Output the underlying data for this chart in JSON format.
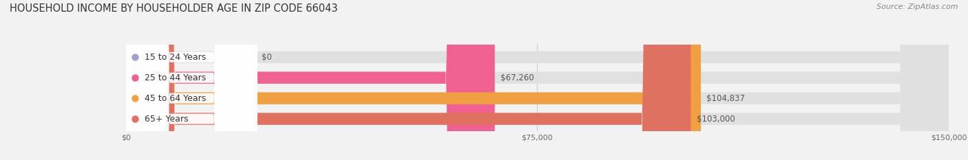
{
  "title": "HOUSEHOLD INCOME BY HOUSEHOLDER AGE IN ZIP CODE 66043",
  "source": "Source: ZipAtlas.com",
  "categories": [
    "15 to 24 Years",
    "25 to 44 Years",
    "45 to 64 Years",
    "65+ Years"
  ],
  "values": [
    0,
    67260,
    104837,
    103000
  ],
  "bar_colors": [
    "#a0a0d0",
    "#f06090",
    "#f0a040",
    "#e07060"
  ],
  "value_labels": [
    "$0",
    "$67,260",
    "$104,837",
    "$103,000"
  ],
  "x_max": 150000,
  "x_ticks": [
    0,
    75000,
    150000
  ],
  "x_tick_labels": [
    "$0",
    "$75,000",
    "$150,000"
  ],
  "bg_color": "#f2f2f2",
  "bar_bg_color": "#e0e0e0",
  "title_fontsize": 10.5,
  "source_fontsize": 8,
  "label_fontsize": 9,
  "value_fontsize": 8.5
}
